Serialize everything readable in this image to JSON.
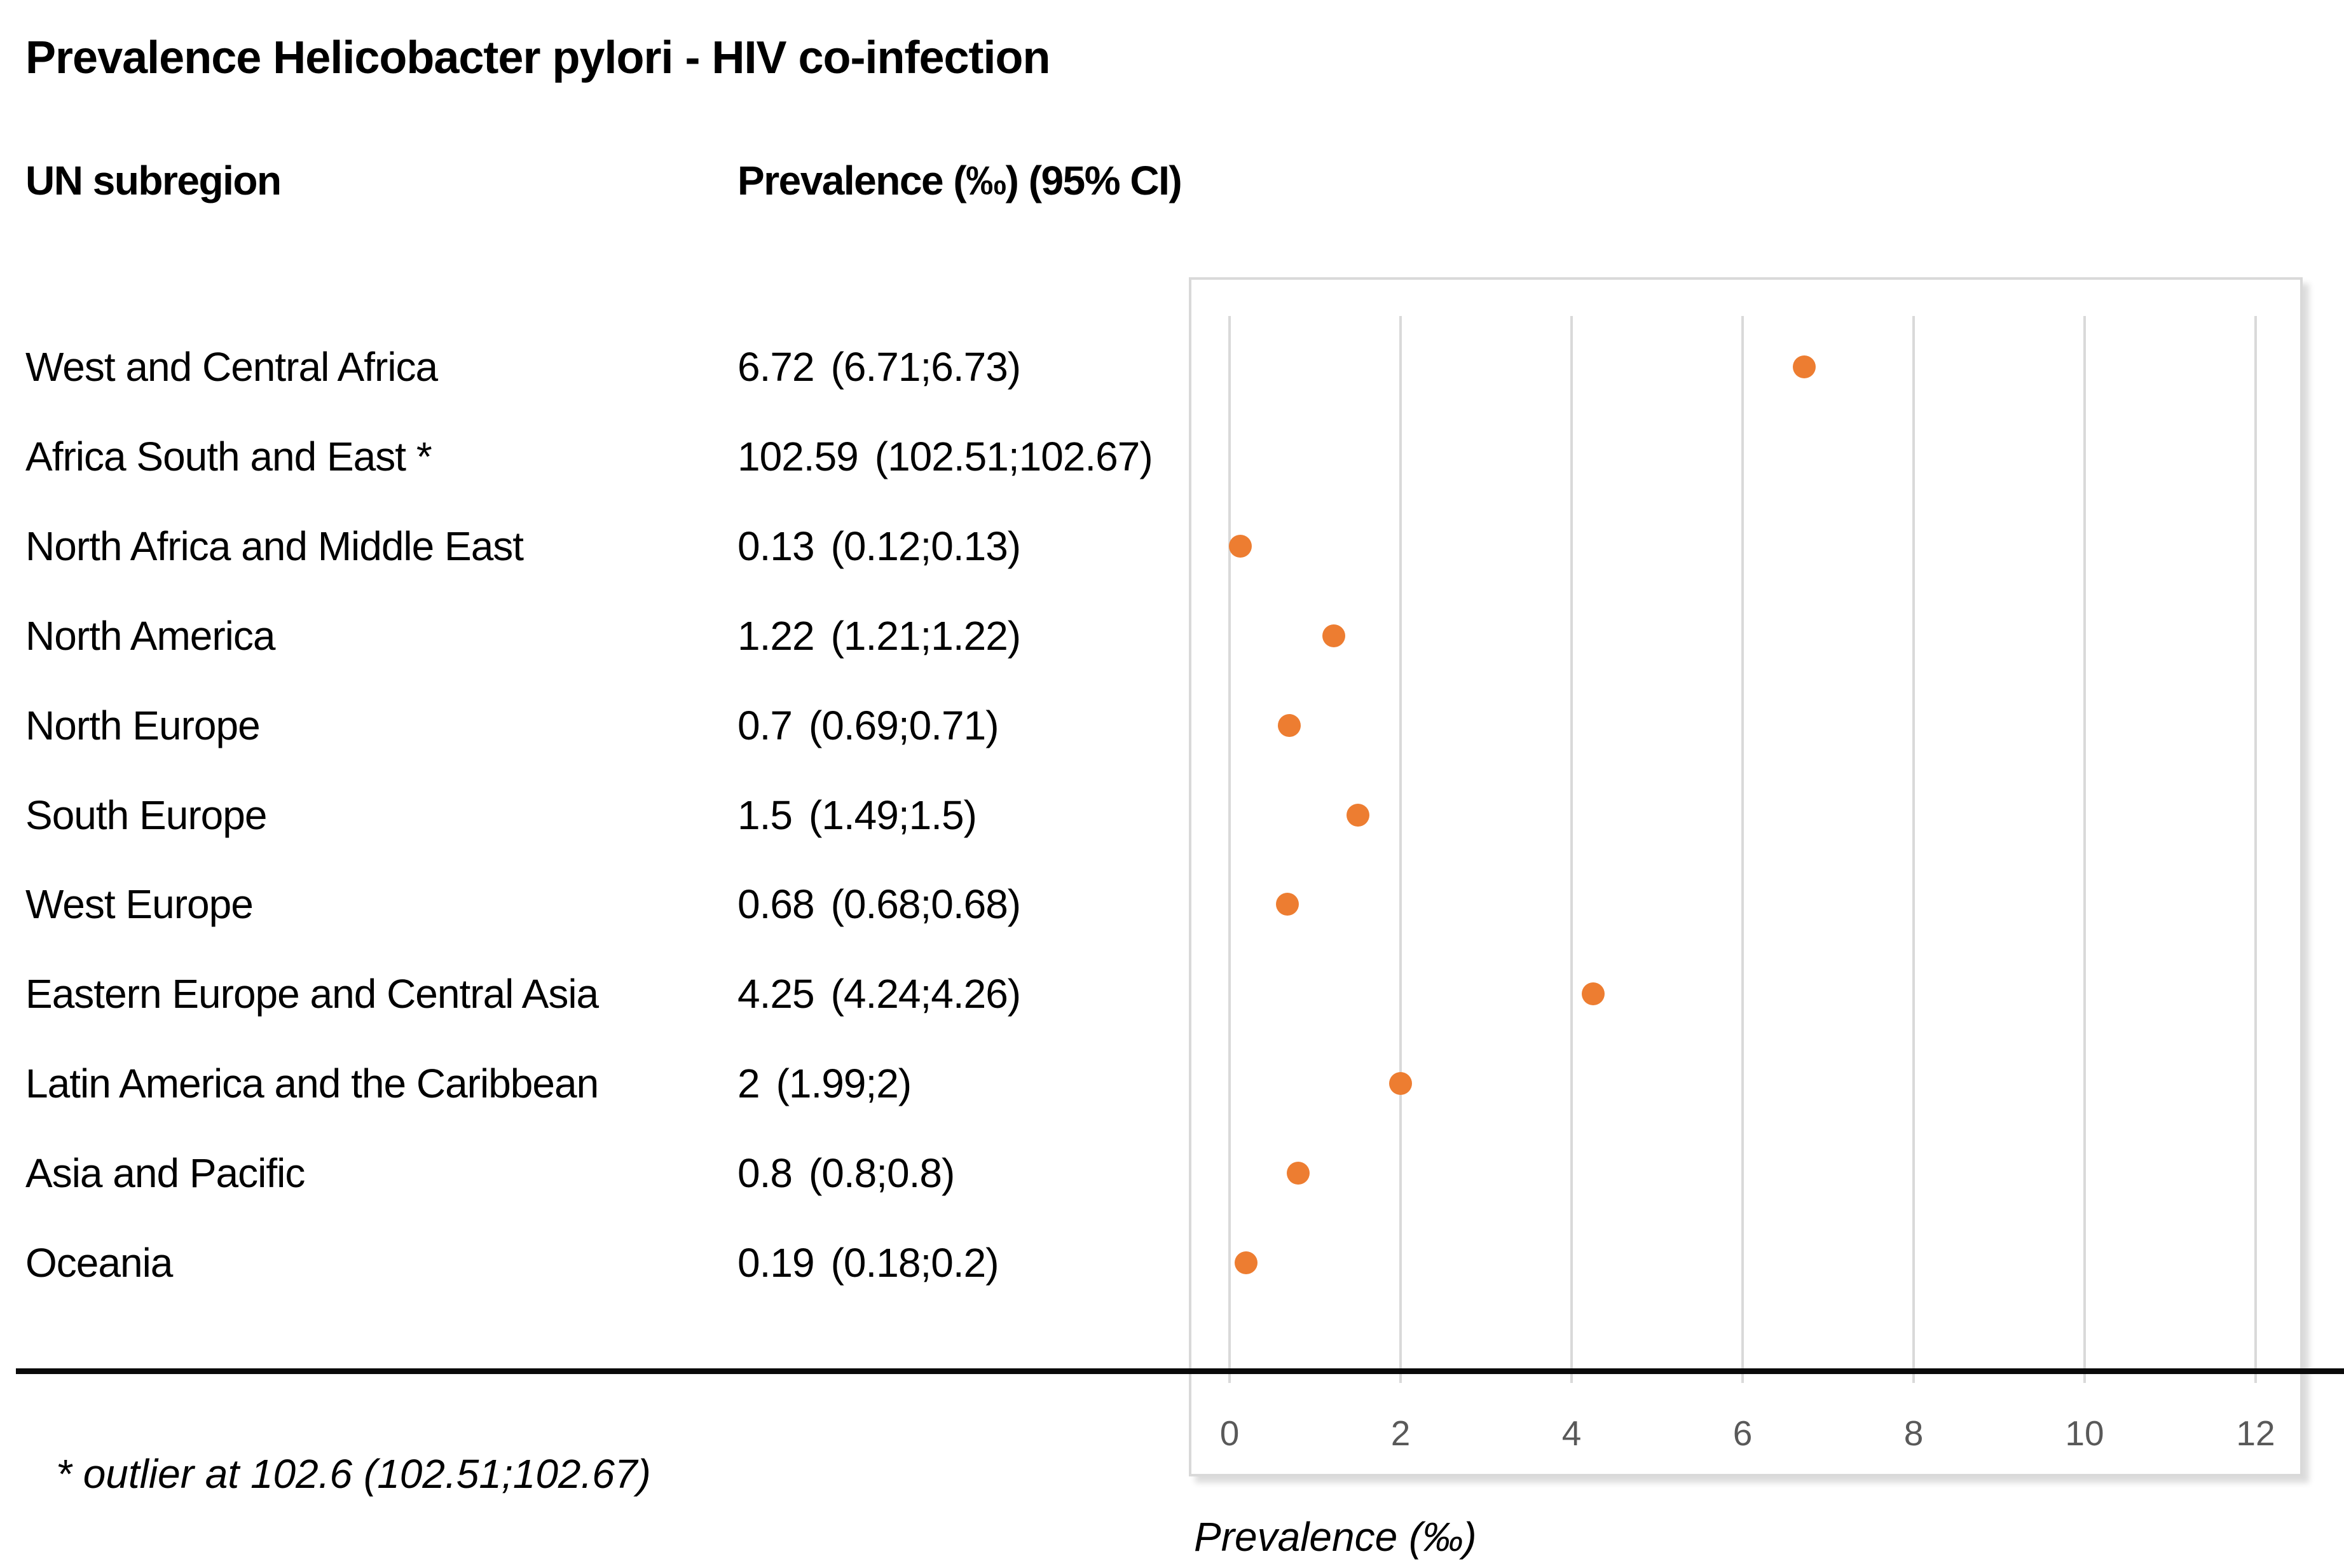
{
  "title": "Prevalence Helicobacter pylori - HIV co-infection",
  "table": {
    "col1_header": "UN subregion",
    "col2_header": "Prevalence (‰) (95% CI)",
    "rows": [
      {
        "label": "West and Central Africa",
        "value": "6.72",
        "ci": "(6.71;6.73)"
      },
      {
        "label": "Africa South and East *",
        "value": "102.59",
        "ci": "(102.51;102.67)"
      },
      {
        "label": "North Africa and Middle East",
        "value": "0.13",
        "ci": "(0.12;0.13)"
      },
      {
        "label": "North America",
        "value": "1.22",
        "ci": "(1.21;1.22)"
      },
      {
        "label": "North Europe",
        "value": "0.7",
        "ci": "(0.69;0.71)"
      },
      {
        "label": "South Europe",
        "value": "1.5",
        "ci": "(1.49;1.5)"
      },
      {
        "label": "West Europe",
        "value": "0.68",
        "ci": "(0.68;0.68)"
      },
      {
        "label": "Eastern Europe and Central Asia",
        "value": "4.25",
        "ci": "(4.24;4.26)"
      },
      {
        "label": "Latin America and the Caribbean",
        "value": "2",
        "ci": "(1.99;2)"
      },
      {
        "label": "Asia and Pacific",
        "value": "0.8",
        "ci": "(0.8;0.8)"
      },
      {
        "label": "Oceania",
        "value": "0.19",
        "ci": "(0.18;0.2)"
      }
    ]
  },
  "footnote": "* outlier at 102.6 (102.51;102.67)",
  "chart_data": {
    "type": "scatter",
    "title": "Prevalence Helicobacter pylori - HIV co-infection",
    "categories": [
      "West and Central Africa",
      "Africa South and East *",
      "North Africa and Middle East",
      "North America",
      "North Europe",
      "South Europe",
      "West Europe",
      "Eastern Europe and Central Asia",
      "Latin America and the Caribbean",
      "Asia and Pacific",
      "Oceania"
    ],
    "values": [
      6.72,
      102.59,
      0.13,
      1.22,
      0.7,
      1.5,
      0.68,
      4.25,
      2,
      0.8,
      0.19
    ],
    "ci_low": [
      6.71,
      102.51,
      0.12,
      1.21,
      0.69,
      1.49,
      0.68,
      4.24,
      1.99,
      0.8,
      0.18
    ],
    "ci_high": [
      6.73,
      102.67,
      0.13,
      1.22,
      0.71,
      1.5,
      0.68,
      4.26,
      2,
      0.8,
      0.2
    ],
    "xlabel": "Prevalence (‰)",
    "xlim": [
      0,
      12
    ],
    "x_ticks": [
      "0",
      "2",
      "4",
      "6",
      "8",
      "10",
      "12"
    ],
    "grid": "vertical",
    "legend": "none",
    "marker_color": "#ED7D31",
    "gridline_color": "#D9D9D9",
    "border_color": "#D9D9D9",
    "tick_label_color": "#595959"
  }
}
